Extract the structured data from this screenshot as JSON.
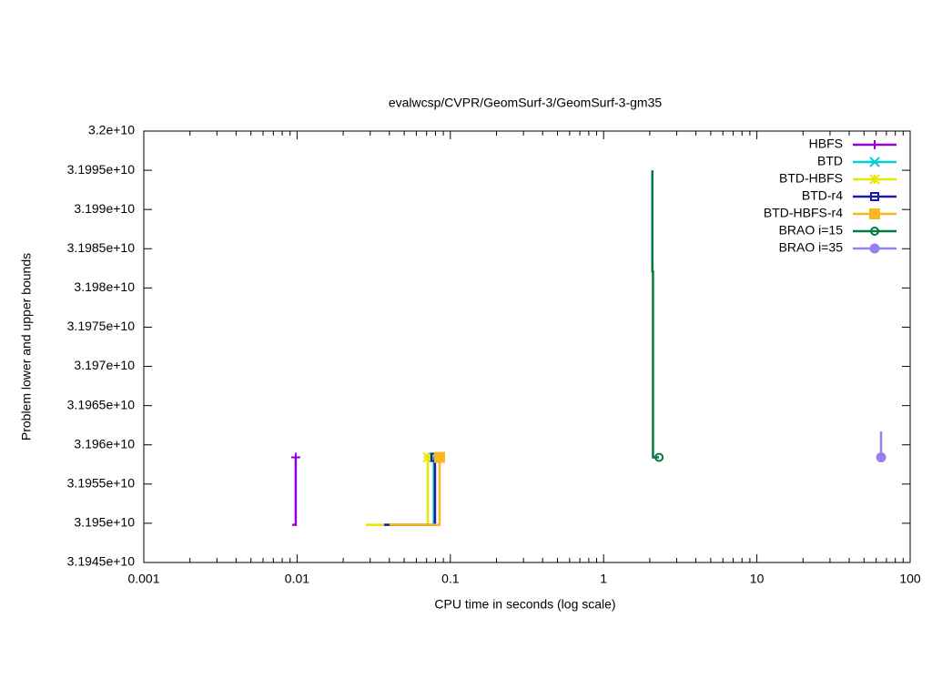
{
  "chart_data": {
    "type": "line",
    "title": "evalwcsp/CVPR/GeomSurf-3/GeomSurf-3-gm35",
    "x_label": "CPU time in seconds (log scale)",
    "y_label": "Problem lower and upper bounds",
    "x_log": true,
    "xlim": [
      0.001,
      100
    ],
    "xticks": [
      0.001,
      0.01,
      0.1,
      1,
      10,
      100
    ],
    "ylim": [
      31945000000,
      32000000000
    ],
    "yticks": [
      {
        "value": 31945000000,
        "label": "3.1945e+10"
      },
      {
        "value": 31950000000,
        "label": "3.195e+10"
      },
      {
        "value": 31955000000,
        "label": "3.1955e+10"
      },
      {
        "value": 31960000000,
        "label": "3.196e+10"
      },
      {
        "value": 31965000000,
        "label": "3.1965e+10"
      },
      {
        "value": 31970000000,
        "label": "3.197e+10"
      },
      {
        "value": 31975000000,
        "label": "3.1975e+10"
      },
      {
        "value": 31980000000,
        "label": "3.198e+10"
      },
      {
        "value": 31985000000,
        "label": "3.1985e+10"
      },
      {
        "value": 31990000000,
        "label": "3.199e+10"
      },
      {
        "value": 31995000000,
        "label": "3.1995e+10"
      },
      {
        "value": 32000000000,
        "label": "3.2e+10"
      }
    ],
    "legend": "top-right",
    "series": [
      {
        "name": "HBFS",
        "color": "#9400d3",
        "marker": "plus",
        "x": [
          0.0093,
          0.0098,
          0.0098
        ],
        "values": [
          31949800000,
          31949800000,
          31958400000
        ]
      },
      {
        "name": "BTD",
        "color": "#00d0d0",
        "marker": "cross",
        "x": [
          0.036,
          0.078,
          0.078
        ],
        "values": [
          31949800000,
          31949800000,
          31958400000
        ]
      },
      {
        "name": "BTD-HBFS",
        "color": "#e8e800",
        "marker": "star",
        "x": [
          0.0281,
          0.0713,
          0.0713
        ],
        "values": [
          31949800000,
          31949800000,
          31958400000
        ]
      },
      {
        "name": "BTD-r4",
        "color": "#1a1aaa",
        "marker": "square-open",
        "x": [
          0.037,
          0.0794,
          0.0794
        ],
        "values": [
          31949800000,
          31949800000,
          31958400000
        ]
      },
      {
        "name": "BTD-HBFS-r4",
        "color": "#f8b820",
        "marker": "square",
        "x": [
          0.0402,
          0.0851,
          0.0851
        ],
        "values": [
          31949800000,
          31949800000,
          31958400000
        ]
      },
      {
        "name": "BRAO i=15",
        "color": "#007a40",
        "marker": "circle-open",
        "x": [
          2.08,
          2.08,
          2.1,
          2.1,
          2.3
        ],
        "values": [
          31995000000,
          31982100000,
          31982100000,
          31958400000,
          31958400000
        ]
      },
      {
        "name": "BRAO i=35",
        "color": "#9b7fef",
        "marker": "circle",
        "x": [
          64.6,
          64.6
        ],
        "values": [
          31961700000,
          31958400000
        ]
      }
    ]
  }
}
